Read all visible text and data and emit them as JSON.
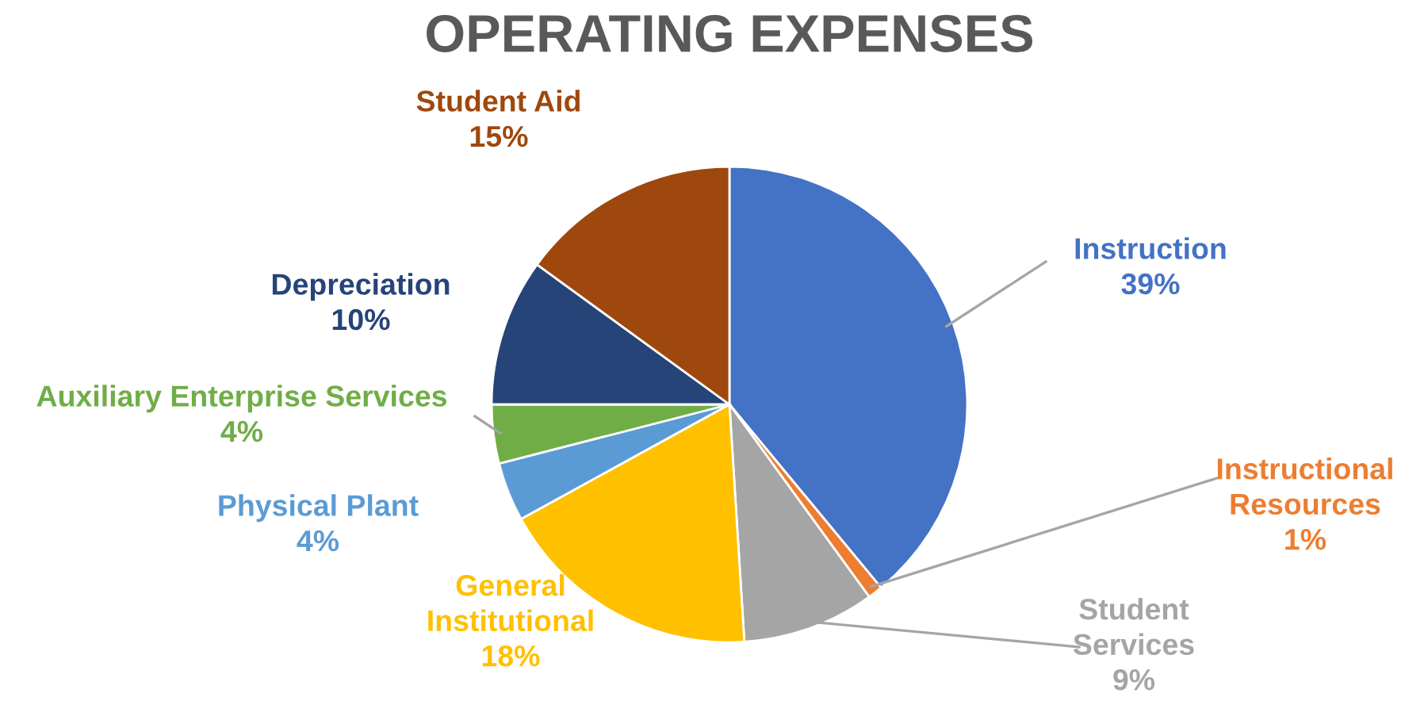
{
  "chart_data": {
    "type": "pie",
    "title": "OPERATING EXPENSES",
    "categories": [
      "Instruction",
      "Instructional Resources",
      "Student Services",
      "General Institutional",
      "Physical Plant",
      "Auxiliary Enterprise Services",
      "Depreciation",
      "Student Aid"
    ],
    "values": [
      39,
      1,
      9,
      18,
      4,
      4,
      10,
      15
    ],
    "value_labels": [
      "39%",
      "1%",
      "9%",
      "18%",
      "4%",
      "4%",
      "10%",
      "15%"
    ],
    "colors": [
      "#4472c4",
      "#ed7d31",
      "#a5a5a5",
      "#ffc000",
      "#5b9bd5",
      "#70ad47",
      "#264478",
      "#9e480e"
    ]
  }
}
